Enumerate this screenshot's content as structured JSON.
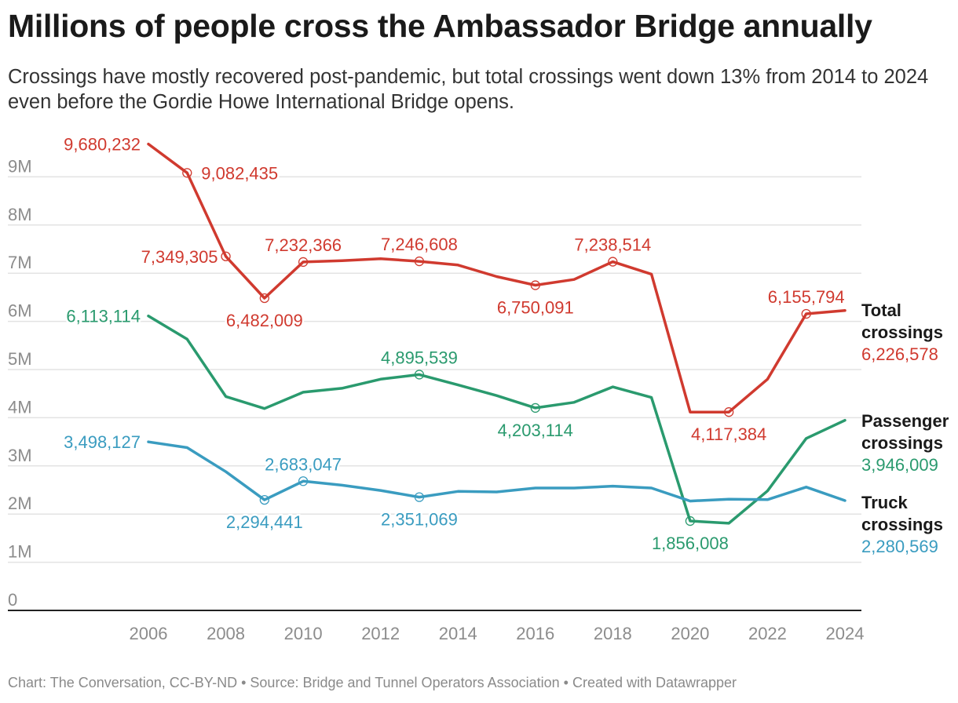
{
  "title": "Millions of people cross the Ambassador Bridge annually",
  "subtitle": "Crossings have mostly recovered post-pandemic, but total crossings went down 13% from 2014 to 2024 even before the Gordie Howe International Bridge opens.",
  "footer": "Chart: The Conversation, CC-BY-ND • Source: Bridge and Tunnel Operators Association • Created with Datawrapper",
  "chart_data": {
    "type": "line",
    "title": "Millions of people cross the Ambassador Bridge annually",
    "subtitle": "Crossings have mostly recovered post-pandemic, but total crossings went down 13% from 2014 to 2024 even before the Gordie Howe International Bridge opens.",
    "x": [
      2006,
      2007,
      2008,
      2009,
      2010,
      2011,
      2012,
      2013,
      2014,
      2015,
      2016,
      2017,
      2018,
      2019,
      2020,
      2021,
      2022,
      2023,
      2024
    ],
    "xlim": [
      2006,
      2024
    ],
    "ylim": [
      0,
      9500000
    ],
    "x_ticks": [
      "2006",
      "2008",
      "2010",
      "2012",
      "2014",
      "2016",
      "2018",
      "2020",
      "2022",
      "2024"
    ],
    "y_ticks": [
      {
        "value": 0,
        "label": "0"
      },
      {
        "value": 1000000,
        "label": "1M"
      },
      {
        "value": 2000000,
        "label": "2M"
      },
      {
        "value": 3000000,
        "label": "3M"
      },
      {
        "value": 4000000,
        "label": "4M"
      },
      {
        "value": 5000000,
        "label": "5M"
      },
      {
        "value": 6000000,
        "label": "6M"
      },
      {
        "value": 7000000,
        "label": "7M"
      },
      {
        "value": 8000000,
        "label": "8M"
      },
      {
        "value": 9000000,
        "label": "9M"
      }
    ],
    "grid": "horizontal",
    "series": [
      {
        "key": "total",
        "name_lines": [
          "Total",
          "crossings"
        ],
        "color": "#d03a2f",
        "last_value": "6,226,578",
        "values": [
          9680232,
          9082435,
          7349305,
          6482009,
          7232366,
          7260000,
          7300000,
          7246608,
          7170000,
          6930000,
          6750091,
          6870000,
          7238514,
          6980000,
          4117384,
          4117384,
          4800000,
          6155794,
          6226578
        ],
        "annotations": [
          {
            "year": 2006,
            "text": "9,680,232",
            "pos": "left",
            "marker": false
          },
          {
            "year": 2007,
            "text": "9,082,435",
            "pos": "right",
            "marker": true
          },
          {
            "year": 2008,
            "text": "7,349,305",
            "pos": "left",
            "marker": true
          },
          {
            "year": 2009,
            "text": "6,482,009",
            "pos": "below",
            "marker": true
          },
          {
            "year": 2010,
            "text": "7,232,366",
            "pos": "above",
            "marker": true
          },
          {
            "year": 2013,
            "text": "7,246,608",
            "pos": "above",
            "marker": true
          },
          {
            "year": 2016,
            "text": "6,750,091",
            "pos": "below",
            "marker": true
          },
          {
            "year": 2018,
            "text": "7,238,514",
            "pos": "above",
            "marker": true
          },
          {
            "year": 2021,
            "text": "4,117,384",
            "pos": "below",
            "marker": true
          },
          {
            "year": 2023,
            "text": "6,155,794",
            "pos": "above",
            "marker": true
          }
        ]
      },
      {
        "key": "passenger",
        "name_lines": [
          "Passenger",
          "crossings"
        ],
        "color": "#2a9a6e",
        "last_value": "3,946,009",
        "values": [
          6113114,
          5630000,
          4440000,
          4190000,
          4530000,
          4610000,
          4800000,
          4895539,
          4680000,
          4460000,
          4203114,
          4320000,
          4640000,
          4420000,
          1856008,
          1810000,
          2480000,
          3570000,
          3946009
        ],
        "annotations": [
          {
            "year": 2006,
            "text": "6,113,114",
            "pos": "left",
            "marker": false
          },
          {
            "year": 2013,
            "text": "4,895,539",
            "pos": "above",
            "marker": true
          },
          {
            "year": 2016,
            "text": "4,203,114",
            "pos": "below",
            "marker": true
          },
          {
            "year": 2020,
            "text": "1,856,008",
            "pos": "below",
            "marker": true
          }
        ]
      },
      {
        "key": "truck",
        "name_lines": [
          "Truck",
          "crossings"
        ],
        "color": "#3a9cc0",
        "last_value": "2,280,569",
        "values": [
          3498127,
          3380000,
          2880000,
          2294441,
          2683047,
          2600000,
          2490000,
          2351069,
          2470000,
          2460000,
          2540000,
          2540000,
          2580000,
          2540000,
          2270000,
          2310000,
          2300000,
          2560000,
          2280569
        ],
        "annotations": [
          {
            "year": 2006,
            "text": "3,498,127",
            "pos": "left",
            "marker": false
          },
          {
            "year": 2009,
            "text": "2,294,441",
            "pos": "below",
            "marker": true
          },
          {
            "year": 2010,
            "text": "2,683,047",
            "pos": "above",
            "marker": true
          },
          {
            "year": 2013,
            "text": "2,351,069",
            "pos": "below",
            "marker": true
          }
        ]
      }
    ]
  }
}
